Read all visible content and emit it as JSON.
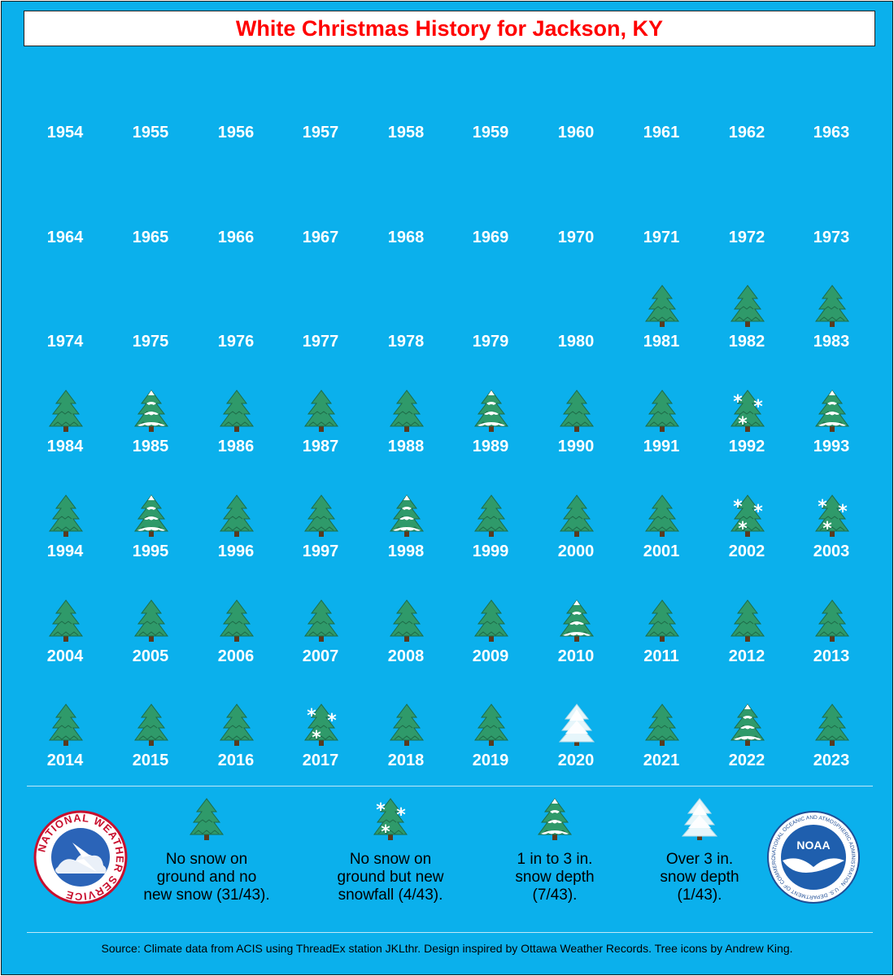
{
  "title": "White Christmas History for Jackson, KY",
  "colors": {
    "background": "#0bb0ec",
    "title": "#ff0000",
    "tree_green": "#2e8b57",
    "snow": "#ffffff"
  },
  "years": [
    {
      "year": "1954",
      "category": "none"
    },
    {
      "year": "1955",
      "category": "none"
    },
    {
      "year": "1956",
      "category": "none"
    },
    {
      "year": "1957",
      "category": "none"
    },
    {
      "year": "1958",
      "category": "none"
    },
    {
      "year": "1959",
      "category": "none"
    },
    {
      "year": "1960",
      "category": "none"
    },
    {
      "year": "1961",
      "category": "none"
    },
    {
      "year": "1962",
      "category": "none"
    },
    {
      "year": "1963",
      "category": "none"
    },
    {
      "year": "1964",
      "category": "none"
    },
    {
      "year": "1965",
      "category": "none"
    },
    {
      "year": "1966",
      "category": "none"
    },
    {
      "year": "1967",
      "category": "none"
    },
    {
      "year": "1968",
      "category": "none"
    },
    {
      "year": "1969",
      "category": "none"
    },
    {
      "year": "1970",
      "category": "none"
    },
    {
      "year": "1971",
      "category": "none"
    },
    {
      "year": "1972",
      "category": "none"
    },
    {
      "year": "1973",
      "category": "none"
    },
    {
      "year": "1974",
      "category": "none"
    },
    {
      "year": "1975",
      "category": "none"
    },
    {
      "year": "1976",
      "category": "none"
    },
    {
      "year": "1977",
      "category": "none"
    },
    {
      "year": "1978",
      "category": "none"
    },
    {
      "year": "1979",
      "category": "none"
    },
    {
      "year": "1980",
      "category": "none"
    },
    {
      "year": "1981",
      "category": "no_snow"
    },
    {
      "year": "1982",
      "category": "no_snow"
    },
    {
      "year": "1983",
      "category": "no_snow"
    },
    {
      "year": "1984",
      "category": "no_snow"
    },
    {
      "year": "1985",
      "category": "snow_1_3"
    },
    {
      "year": "1986",
      "category": "no_snow"
    },
    {
      "year": "1987",
      "category": "no_snow"
    },
    {
      "year": "1988",
      "category": "no_snow"
    },
    {
      "year": "1989",
      "category": "snow_1_3"
    },
    {
      "year": "1990",
      "category": "no_snow"
    },
    {
      "year": "1991",
      "category": "no_snow"
    },
    {
      "year": "1992",
      "category": "new_snowfall"
    },
    {
      "year": "1993",
      "category": "snow_1_3"
    },
    {
      "year": "1994",
      "category": "no_snow"
    },
    {
      "year": "1995",
      "category": "snow_1_3"
    },
    {
      "year": "1996",
      "category": "no_snow"
    },
    {
      "year": "1997",
      "category": "no_snow"
    },
    {
      "year": "1998",
      "category": "snow_1_3"
    },
    {
      "year": "1999",
      "category": "no_snow"
    },
    {
      "year": "2000",
      "category": "no_snow"
    },
    {
      "year": "2001",
      "category": "no_snow"
    },
    {
      "year": "2002",
      "category": "new_snowfall"
    },
    {
      "year": "2003",
      "category": "new_snowfall"
    },
    {
      "year": "2004",
      "category": "no_snow"
    },
    {
      "year": "2005",
      "category": "no_snow"
    },
    {
      "year": "2006",
      "category": "no_snow"
    },
    {
      "year": "2007",
      "category": "no_snow"
    },
    {
      "year": "2008",
      "category": "no_snow"
    },
    {
      "year": "2009",
      "category": "no_snow"
    },
    {
      "year": "2010",
      "category": "snow_1_3"
    },
    {
      "year": "2011",
      "category": "no_snow"
    },
    {
      "year": "2012",
      "category": "no_snow"
    },
    {
      "year": "2013",
      "category": "no_snow"
    },
    {
      "year": "2014",
      "category": "no_snow"
    },
    {
      "year": "2015",
      "category": "no_snow"
    },
    {
      "year": "2016",
      "category": "no_snow"
    },
    {
      "year": "2017",
      "category": "new_snowfall"
    },
    {
      "year": "2018",
      "category": "no_snow"
    },
    {
      "year": "2019",
      "category": "no_snow"
    },
    {
      "year": "2020",
      "category": "snow_over_3"
    },
    {
      "year": "2021",
      "category": "no_snow"
    },
    {
      "year": "2022",
      "category": "snow_1_3"
    },
    {
      "year": "2023",
      "category": "no_snow"
    }
  ],
  "legend": [
    {
      "category": "no_snow",
      "text": "No snow on\nground and no\nnew snow (31/43)."
    },
    {
      "category": "new_snowfall",
      "text": "No snow on\nground but new\nsnowfall (4/43)."
    },
    {
      "category": "snow_1_3",
      "text": "1 in to 3 in.\nsnow depth\n(7/43)."
    },
    {
      "category": "snow_over_3",
      "text": "Over 3 in.\nsnow depth\n(1/43)."
    }
  ],
  "logos": {
    "nws_text": "NATIONAL WEATHER SERVICE",
    "noaa_center": "NOAA",
    "noaa_ring": "NATIONAL OCEANIC AND ATMOSPHERIC ADMINISTRATION · U.S. DEPARTMENT OF COMMERCE"
  },
  "source": "Source: Climate data from ACIS using ThreadEx station JKLthr. Design inspired by Ottawa Weather Records. Tree icons by Andrew King."
}
